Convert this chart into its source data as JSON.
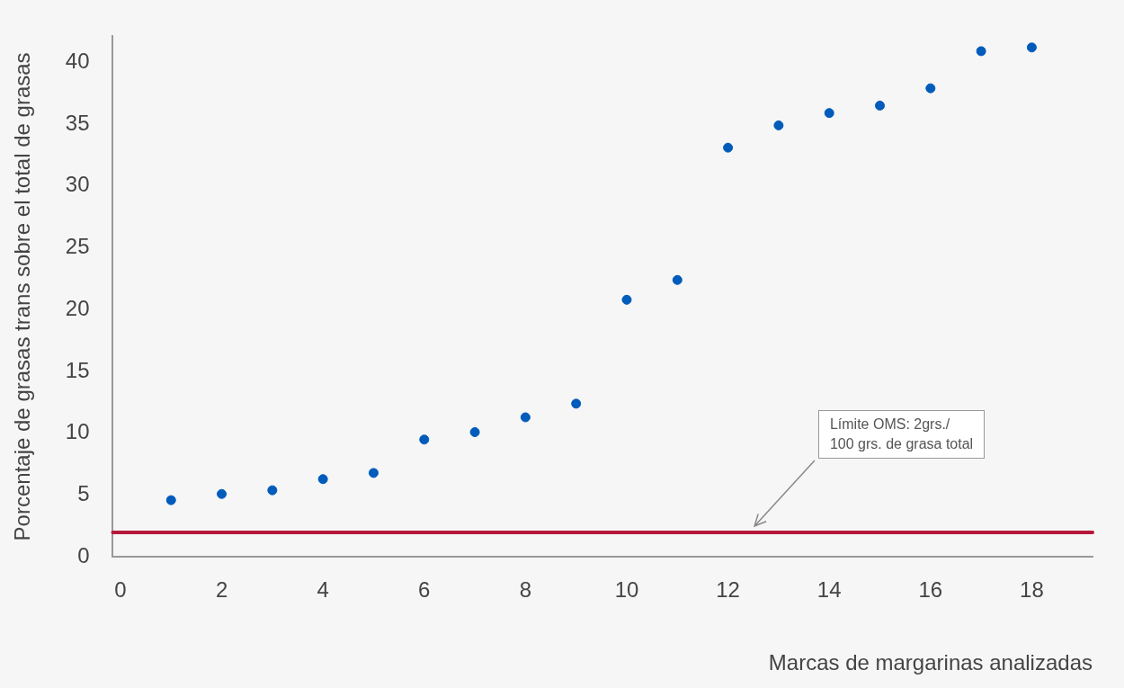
{
  "chart_data": {
    "type": "scatter",
    "xlabel": "Marcas de margarinas analizadas",
    "ylabel": "Porcentaje de grasas trans sobre el total de grasas",
    "x": [
      1,
      2,
      3,
      4,
      5,
      6,
      7,
      8,
      9,
      10,
      11,
      12,
      13,
      14,
      15,
      16,
      17,
      18
    ],
    "values": [
      4.6,
      5.1,
      5.4,
      6.3,
      6.8,
      9.5,
      10.1,
      11.3,
      12.4,
      20.8,
      22.4,
      33.1,
      34.9,
      35.9,
      36.5,
      37.9,
      40.9,
      41.2
    ],
    "color": "#005bbb",
    "marker": "circle",
    "xlim": [
      -0.15,
      19.2
    ],
    "xticks": [
      0,
      2,
      4,
      6,
      8,
      10,
      12,
      14,
      16,
      18
    ],
    "ylim": [
      0,
      42.1
    ],
    "yticks": [
      0,
      5,
      10,
      15,
      20,
      25,
      30,
      35,
      40
    ],
    "ref_lines": [
      {
        "axis": "y",
        "value": 2,
        "label": "Límite OMS: 2grs./\n100 grs. de grasa total",
        "color": "#b5183a"
      }
    ],
    "grid": false,
    "legend": false
  }
}
